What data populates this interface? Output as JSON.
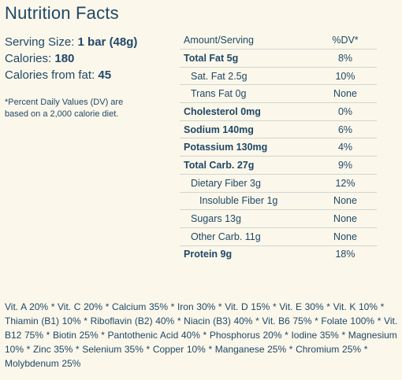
{
  "title": "Nutrition Facts",
  "summary": {
    "serving_size_label": "Serving Size:",
    "serving_size_value": "1 bar (48g)",
    "calories_label": "Calories:",
    "calories_value": "180",
    "fat_calories_label": "Calories from fat:",
    "fat_calories_value": "45",
    "note": "*Percent Daily Values (DV) are based on a 2,000 calorie diet."
  },
  "table": {
    "header_label": "Amount/Serving",
    "header_dv": "%DV*",
    "rows": [
      {
        "label": "Total Fat 5g",
        "dv": "8%"
      },
      {
        "label": "Sat. Fat 2.5g",
        "dv": "10%"
      },
      {
        "label": "Trans Fat 0g",
        "dv": "None"
      },
      {
        "label": "Cholesterol 0mg",
        "dv": "0%"
      },
      {
        "label": "Sodium 140mg",
        "dv": "6%"
      },
      {
        "label": "Potassium 130mg",
        "dv": "4%"
      },
      {
        "label": "Total Carb. 27g",
        "dv": "9%"
      },
      {
        "label": "Dietary Fiber 3g",
        "dv": "12%"
      },
      {
        "label": "Insoluble Fiber 1g",
        "dv": "None"
      },
      {
        "label": "Sugars 13g",
        "dv": "None"
      },
      {
        "label": "Other Carb. 11g",
        "dv": "None"
      },
      {
        "label": "Protein 9g",
        "dv": "18%"
      }
    ]
  },
  "vitamins": "Vit. A 20% * Vit. C 20% * Calcium 35% * Iron 30% * Vit. D 15% * Vit. E 30% * Vit. K 10% * Thiamin (B1) 10% * Riboflavin (B2) 40% * Niacin (B3) 40% * Vit. B6 75% * Folate 100% * Vit. B12 75% * Biotin 25% * Pantothenic Acid 40% * Phosphorus 20% * Iodine 35% * Magnesium 10% * Zinc 35% * Selenium 35% * Copper 10% * Manganese 25% * Chromium 25% * Molybdenum 25%"
}
